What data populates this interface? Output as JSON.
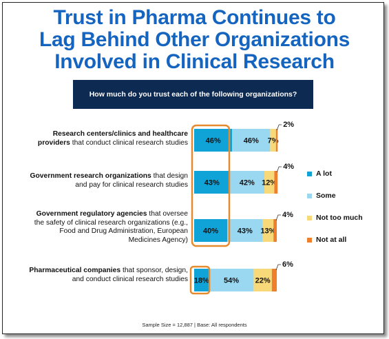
{
  "title_lines": [
    "Trust in Pharma Continues to",
    "Lag Behind Other Organizations",
    "Involved in Clinical Research"
  ],
  "question": "How much do you trust each of the following organizations?",
  "footnote": "Sample Size = 12,887 | Base: All respondents",
  "colors": {
    "title": "#1565c0",
    "question_bg": "#0d2a52",
    "highlight_border": "#e68a2e"
  },
  "chart_data": {
    "type": "bar",
    "orientation": "horizontal",
    "stacked": true,
    "unit": "%",
    "categories": [
      {
        "bold": "Research centers/clinics and healthcare providers",
        "rest": " that conduct clinical research studies"
      },
      {
        "bold": "Government research organizations",
        "rest": " that design and pay for clinical research studies"
      },
      {
        "bold": "Government regulatory agencies",
        "rest": "  that oversee the safety of clinical research organizations (e.g., Food and Drug Administration, European Medicines Agency)"
      },
      {
        "bold": "Pharmaceutical companies",
        "rest": " that sponsor, design, and conduct clinical research studies"
      }
    ],
    "series": [
      {
        "name": "A lot",
        "color": "#0fa3d8",
        "values": [
          46,
          43,
          40,
          18
        ]
      },
      {
        "name": "Some",
        "color": "#9ad8f2",
        "values": [
          46,
          42,
          43,
          54
        ]
      },
      {
        "name": "Not too much",
        "color": "#f8d97a",
        "values": [
          7,
          12,
          13,
          22
        ]
      },
      {
        "name": "Not at all",
        "color": "#ee7f2d",
        "values": [
          2,
          4,
          4,
          6
        ]
      }
    ],
    "data_labels": [
      [
        "46%",
        "46%",
        "7%",
        "2%"
      ],
      [
        "43%",
        "42%",
        "12%",
        "4%"
      ],
      [
        "40%",
        "43%",
        "13%",
        "4%"
      ],
      [
        "18%",
        "54%",
        "22%",
        "6%"
      ]
    ],
    "legend_position": "right",
    "highlight": "A lot"
  }
}
